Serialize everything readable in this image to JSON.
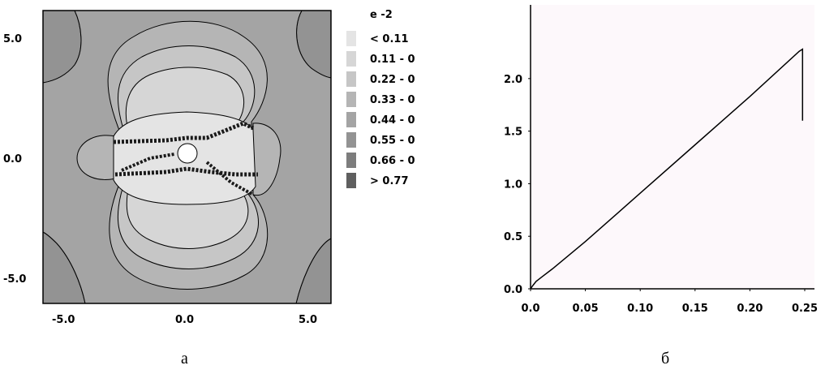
{
  "captions": {
    "left": "а",
    "right": "б"
  },
  "chart_data": [
    {
      "type": "heatmap",
      "xlim": [
        -6.0,
        6.0
      ],
      "ylim": [
        -6.0,
        6.0
      ],
      "x_tick_labels": [
        "-5.0",
        "0.0",
        "5.0"
      ],
      "y_tick_labels": [
        "5.0",
        "0.0",
        "-5.0"
      ],
      "legend": {
        "title": "e -2",
        "position": "right",
        "items": [
          {
            "label": "< 0.11",
            "color": "#e4e4e4"
          },
          {
            "label": "0.11 - 0",
            "color": "#d6d6d6"
          },
          {
            "label": "0.22 - 0",
            "color": "#c6c6c6"
          },
          {
            "label": "0.33 - 0",
            "color": "#b5b5b5"
          },
          {
            "label": "0.44 - 0",
            "color": "#a4a4a4"
          },
          {
            "label": "0.55 - 0",
            "color": "#939393"
          },
          {
            "label": "0.66 - 0",
            "color": "#7d7d7d"
          },
          {
            "label": "> 0.77",
            "color": "#5f5f5f"
          }
        ]
      },
      "grid": false
    },
    {
      "type": "line",
      "xlim": [
        0.0,
        0.25
      ],
      "ylim": [
        0.0,
        2.3
      ],
      "x_tick_labels": [
        "0.0",
        "0.05",
        "0.10",
        "0.15",
        "0.20",
        "0.25"
      ],
      "y_tick_labels": [
        "2.0",
        "1.5",
        "1.0",
        "0.5",
        "0.0"
      ],
      "series": [
        {
          "x": [
            0.0,
            0.002,
            0.005,
            0.01,
            0.02,
            0.05,
            0.1,
            0.15,
            0.2,
            0.245,
            0.248,
            0.248
          ],
          "y": [
            0.0,
            0.03,
            0.07,
            0.11,
            0.19,
            0.45,
            0.91,
            1.37,
            1.83,
            2.26,
            2.28,
            1.6
          ]
        }
      ],
      "grid": false
    }
  ]
}
